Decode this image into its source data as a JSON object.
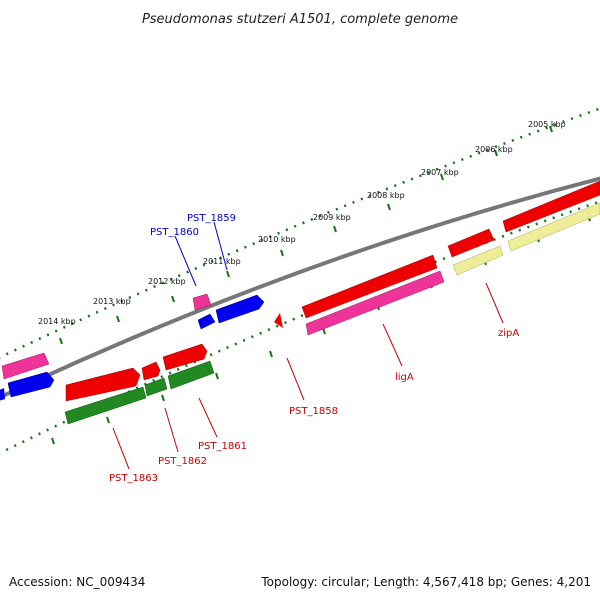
{
  "title": "Pseudomonas stutzeri A1501, complete genome",
  "accession": "Accession: NC_009434",
  "summary": "Topology: circular; Length: 4,567,418 bp; Genes: 4,201",
  "ruler_labels": [
    "2005 kbp",
    "2006 kbp",
    "2007 kbp",
    "2008 kbp",
    "2009 kbp",
    "2010 kbp",
    "2011 kbp",
    "2012 kbp",
    "2013 kbp",
    "2014 kbp"
  ],
  "gene_labels": {
    "pst1859": "PST_1859",
    "pst1860": "PST_1860",
    "pst1858": "PST_1858",
    "liga": "ligA",
    "zipa": "zipA",
    "pst1861": "PST_1861",
    "pst1862": "PST_1862",
    "pst1863": "PST_1863"
  },
  "colors": {
    "red": "#ee0000",
    "magenta": "#ee3399",
    "blue": "#0000ee",
    "green": "#228822",
    "yellow": "#eeee99",
    "backbone": "#888888",
    "ticks": "#117711",
    "forward_label": "#0000cc",
    "reverse_label": "#cc0000"
  }
}
